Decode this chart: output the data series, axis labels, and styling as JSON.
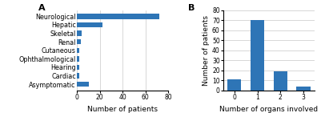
{
  "chart_a": {
    "categories": [
      "Neurological",
      "Hepatic",
      "Skeletal",
      "Renal",
      "Cutaneous",
      "Ophthalmological",
      "Hearing",
      "Cardiac",
      "Asymptomatic"
    ],
    "values": [
      72,
      22,
      4,
      3,
      2,
      2,
      2,
      2,
      10
    ],
    "bar_color": "#2E75B6",
    "xlabel": "Number of patients",
    "xticks": [
      0,
      20,
      40,
      60,
      80
    ],
    "xlim": [
      0,
      80
    ],
    "label": "A"
  },
  "chart_b": {
    "categories": [
      0,
      1,
      2,
      3
    ],
    "values": [
      11,
      70,
      19,
      4
    ],
    "bar_color": "#2E75B6",
    "xlabel": "Number of organs involved",
    "ylabel": "Number of patients",
    "yticks": [
      0,
      10,
      20,
      30,
      40,
      50,
      60,
      70,
      80
    ],
    "ylim": [
      0,
      80
    ],
    "label": "B"
  },
  "background_color": "#ffffff",
  "grid_color": "#c8c8c8",
  "font_size": 5.8,
  "label_font_size": 6.5,
  "tick_font_size": 5.5
}
